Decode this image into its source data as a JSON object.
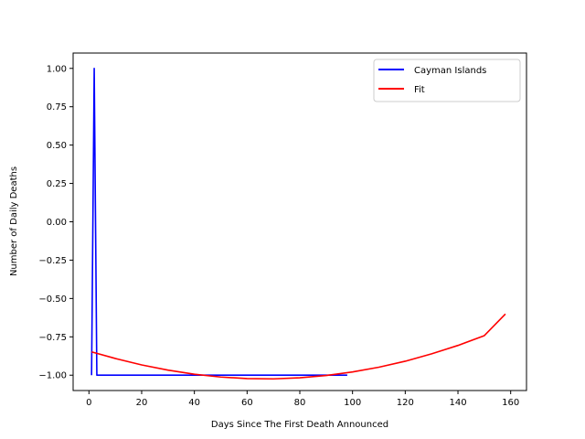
{
  "chart_data": {
    "type": "line",
    "xlabel": "Days Since The First Death Announced",
    "ylabel": "Number of Daily Deaths",
    "xlim": [
      -6,
      166
    ],
    "ylim": [
      -1.1,
      1.1
    ],
    "xticks": [
      0,
      20,
      40,
      60,
      80,
      100,
      120,
      140,
      160
    ],
    "yticks": [
      -1.0,
      -0.75,
      -0.5,
      -0.25,
      0.0,
      0.25,
      0.5,
      0.75,
      1.0
    ],
    "grid": false,
    "legend": "top-right",
    "series": [
      {
        "name": "Cayman Islands",
        "color": "#0000ff",
        "x": [
          1,
          2,
          3,
          98
        ],
        "y": [
          -1,
          1,
          -1,
          -1
        ]
      },
      {
        "name": "Fit",
        "color": "#ff0000",
        "x": [
          1,
          10,
          20,
          30,
          40,
          50,
          60,
          70,
          80,
          90,
          100,
          110,
          120,
          130,
          140,
          150,
          158
        ],
        "y": [
          -0.848,
          -0.891,
          -0.933,
          -0.967,
          -0.994,
          -1.012,
          -1.022,
          -1.024,
          -1.017,
          -1.002,
          -0.979,
          -0.948,
          -0.909,
          -0.861,
          -0.806,
          -0.742,
          -0.601
        ]
      }
    ]
  }
}
